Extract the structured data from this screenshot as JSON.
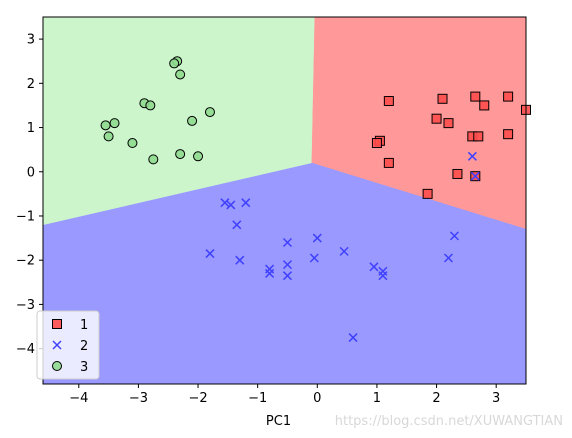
{
  "chart_data": {
    "type": "scatter",
    "title": "",
    "xlabel": "PC1",
    "ylabel": "",
    "xlim": [
      -4.6,
      3.5
    ],
    "ylim": [
      -4.8,
      3.5
    ],
    "x_ticks": [
      -4,
      -3,
      -2,
      -1,
      0,
      1,
      2,
      3
    ],
    "y_ticks": [
      -4,
      -3,
      -2,
      -1,
      0,
      1,
      2,
      3
    ],
    "grid": false,
    "legend_position": "lower-left",
    "decision_regions": [
      {
        "class": "1",
        "color": "#ff9999",
        "polygon": [
          [
            0.0,
            3.5
          ],
          [
            3.5,
            3.5
          ],
          [
            3.5,
            -1.3
          ],
          [
            -0.1,
            0.2
          ],
          [
            -0.05,
            3.5
          ]
        ]
      },
      {
        "class": "2",
        "color": "#9999ff",
        "polygon": [
          [
            -4.6,
            -1.2
          ],
          [
            -0.1,
            0.2
          ],
          [
            3.5,
            -1.3
          ],
          [
            3.5,
            -4.8
          ],
          [
            -4.6,
            -4.8
          ]
        ]
      },
      {
        "class": "3",
        "color": "#ccf5cc",
        "polygon": [
          [
            -4.6,
            3.5
          ],
          [
            -0.05,
            3.5
          ],
          [
            -0.1,
            0.2
          ],
          [
            -4.6,
            -1.2
          ]
        ]
      }
    ],
    "series": [
      {
        "name": "1",
        "marker": "square",
        "color": "#ff4d4d",
        "points": [
          [
            1.2,
            1.6
          ],
          [
            2.1,
            1.65
          ],
          [
            2.65,
            1.7
          ],
          [
            3.2,
            1.7
          ],
          [
            2.8,
            1.5
          ],
          [
            3.5,
            1.4
          ],
          [
            2.0,
            1.2
          ],
          [
            2.2,
            1.1
          ],
          [
            2.6,
            0.8
          ],
          [
            2.7,
            0.8
          ],
          [
            3.2,
            0.85
          ],
          [
            1.05,
            0.7
          ],
          [
            1.0,
            0.65
          ],
          [
            1.2,
            0.2
          ],
          [
            2.35,
            -0.05
          ],
          [
            2.65,
            -0.1
          ],
          [
            1.85,
            -0.5
          ]
        ]
      },
      {
        "name": "2",
        "marker": "x",
        "color": "#4040ff",
        "points": [
          [
            -1.55,
            -0.7
          ],
          [
            -1.45,
            -0.75
          ],
          [
            -1.2,
            -0.7
          ],
          [
            -1.35,
            -1.2
          ],
          [
            -1.8,
            -1.85
          ],
          [
            -1.3,
            -2.0
          ],
          [
            -0.5,
            -1.6
          ],
          [
            0.0,
            -1.5
          ],
          [
            -0.05,
            -1.95
          ],
          [
            -0.5,
            -2.1
          ],
          [
            -0.5,
            -2.35
          ],
          [
            -0.8,
            -2.2
          ],
          [
            -0.8,
            -2.3
          ],
          [
            0.45,
            -1.8
          ],
          [
            0.95,
            -2.15
          ],
          [
            1.1,
            -2.25
          ],
          [
            1.1,
            -2.35
          ],
          [
            2.3,
            -1.45
          ],
          [
            2.2,
            -1.95
          ],
          [
            2.6,
            0.35
          ],
          [
            2.65,
            -0.1
          ],
          [
            0.6,
            -3.75
          ]
        ]
      },
      {
        "name": "3",
        "marker": "circle",
        "color": "#8fd98f",
        "points": [
          [
            -2.35,
            2.5
          ],
          [
            -2.4,
            2.45
          ],
          [
            -2.3,
            2.2
          ],
          [
            -2.9,
            1.55
          ],
          [
            -2.8,
            1.5
          ],
          [
            -1.8,
            1.35
          ],
          [
            -2.1,
            1.15
          ],
          [
            -3.4,
            1.1
          ],
          [
            -3.55,
            1.05
          ],
          [
            -3.5,
            0.8
          ],
          [
            -3.1,
            0.65
          ],
          [
            -2.3,
            0.4
          ],
          [
            -2.0,
            0.35
          ],
          [
            -2.75,
            0.28
          ]
        ]
      }
    ]
  },
  "watermark": "https://blog.csdn.net/XUWANGTIAN"
}
